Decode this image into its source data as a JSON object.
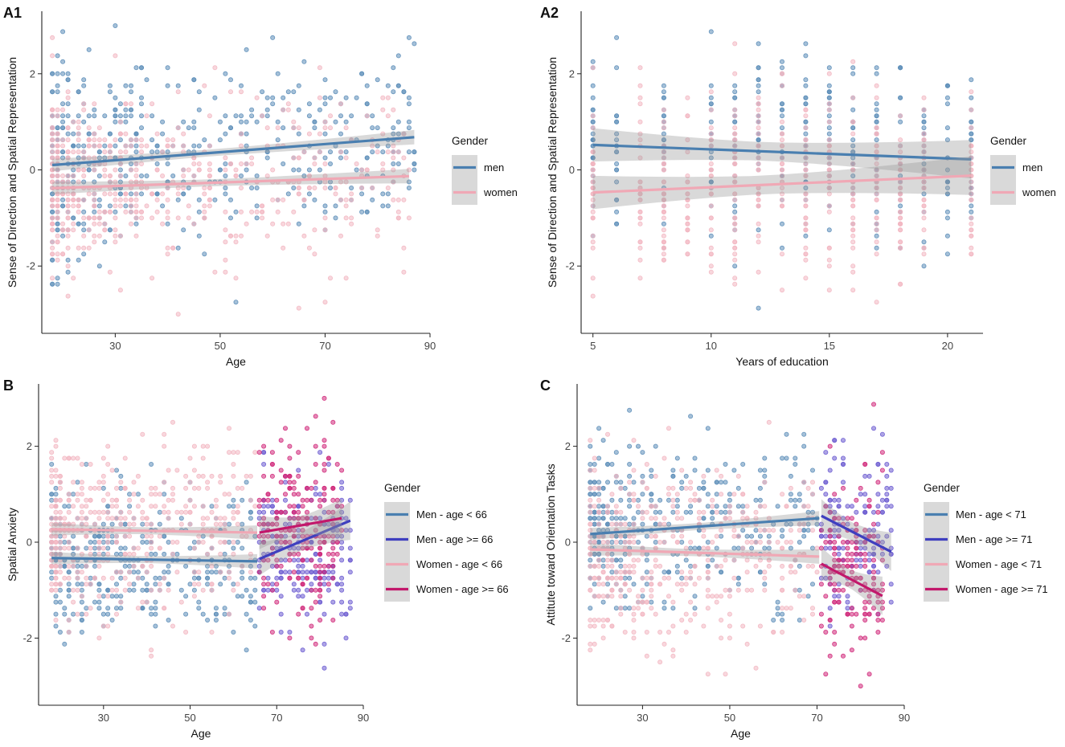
{
  "chart_data": [
    {
      "panel": "A1",
      "type": "scatter",
      "xlabel": "Age",
      "ylabel": "Sense of Direction and Spatial Representation",
      "xlim": [
        16,
        90
      ],
      "ylim": [
        -3.4,
        3.3
      ],
      "xticks": [
        30,
        50,
        70,
        90
      ],
      "yticks": [
        -2,
        0,
        2
      ],
      "legend_title": "Gender",
      "series": [
        {
          "name": "men",
          "color": "#4a7fb0",
          "point_color": "#5b8db8",
          "fit": {
            "x": [
              18,
              87
            ],
            "y": [
              0.1,
              0.68
            ]
          },
          "points": {
            "center": [
              20,
              90,
              0.35
            ],
            "xmin": 18,
            "xmax": 87,
            "n": 520,
            "sd": 0.95,
            "xgrid": 1,
            "ygrid": 0.125,
            "density": "young-old"
          }
        },
        {
          "name": "women",
          "color": "#f0a8b5",
          "point_color": "#f2b6c1",
          "fit": {
            "x": [
              18,
              86
            ],
            "y": [
              -0.38,
              -0.13
            ]
          },
          "points": {
            "center": [
              20,
              90,
              -0.25
            ],
            "xmin": 18,
            "xmax": 86,
            "n": 560,
            "sd": 0.95,
            "xgrid": 1,
            "ygrid": 0.125,
            "density": "young-old"
          }
        }
      ]
    },
    {
      "panel": "A2",
      "type": "scatter",
      "xlabel": "Years of education",
      "ylabel": "Sense of Direction and Spatial Representation",
      "xlim": [
        4.5,
        21.5
      ],
      "ylim": [
        -3.4,
        3.3
      ],
      "xticks": [
        5,
        10,
        15,
        20
      ],
      "yticks": [
        -2,
        0,
        2
      ],
      "legend_title": "Gender",
      "series": [
        {
          "name": "men",
          "color": "#4a7fb0",
          "point_color": "#5b8db8",
          "fit": {
            "x": [
              5,
              21
            ],
            "y": [
              0.52,
              0.22
            ]
          },
          "points": {
            "xvalues": [
              5,
              6,
              8,
              10,
              11,
              12,
              13,
              14,
              15,
              16,
              17,
              18,
              19,
              20,
              21
            ],
            "n": 420,
            "sd": 0.95,
            "ygrid": 0.125
          }
        },
        {
          "name": "women",
          "color": "#f0a8b5",
          "point_color": "#f2b6c1",
          "fit": {
            "x": [
              5,
              21
            ],
            "y": [
              -0.47,
              -0.12
            ]
          },
          "points": {
            "xvalues": [
              5,
              7,
              8,
              9,
              10,
              11,
              12,
              13,
              14,
              15,
              16,
              17,
              18,
              19,
              21
            ],
            "n": 460,
            "sd": 0.95,
            "ygrid": 0.125
          }
        }
      ]
    },
    {
      "panel": "B",
      "type": "scatter",
      "xlabel": "Age",
      "ylabel": "Spatial Anxiety",
      "xlim": [
        15,
        90
      ],
      "ylim": [
        -3.4,
        3.3
      ],
      "xticks": [
        30,
        50,
        70,
        90
      ],
      "yticks": [
        -2,
        0,
        2
      ],
      "legend_title": "Gender",
      "series": [
        {
          "name": "Men - age < 66",
          "color": "#4a7fb0",
          "point_color": "#5b8db8",
          "fit": {
            "x": [
              18,
              65.5
            ],
            "y": [
              -0.33,
              -0.4
            ]
          },
          "points": {
            "xmin": 18,
            "xmax": 65,
            "n": 380,
            "mean": -0.35,
            "sd": 0.7,
            "xgrid": 1,
            "ygrid": 0.125,
            "density": "young"
          }
        },
        {
          "name": "Men - age >= 66",
          "color": "#3f3fbf",
          "point_color": "#6a5ad0",
          "fit": {
            "x": [
              66,
              87
            ],
            "y": [
              -0.35,
              0.45
            ]
          },
          "points": {
            "xmin": 66,
            "xmax": 87,
            "n": 210,
            "mean": -0.2,
            "sd": 0.85,
            "xgrid": 1,
            "ygrid": 0.125,
            "density": "flat"
          }
        },
        {
          "name": "Women - age < 66",
          "color": "#f0a8b5",
          "point_color": "#f2b6c1",
          "fit": {
            "x": [
              18,
              65.5
            ],
            "y": [
              0.27,
              0.2
            ]
          },
          "points": {
            "xmin": 18,
            "xmax": 65,
            "n": 440,
            "mean": 0.2,
            "sd": 0.9,
            "xgrid": 1,
            "ygrid": 0.125,
            "density": "young"
          }
        },
        {
          "name": "Women - age >= 66",
          "color": "#c2186b",
          "point_color": "#d0287a",
          "fit": {
            "x": [
              66,
              85
            ],
            "y": [
              0.2,
              0.5
            ]
          },
          "points": {
            "xmin": 66,
            "xmax": 85,
            "n": 230,
            "mean": 0.35,
            "sd": 0.9,
            "xgrid": 1,
            "ygrid": 0.125,
            "density": "flat"
          }
        }
      ]
    },
    {
      "panel": "C",
      "type": "scatter",
      "xlabel": "Age",
      "ylabel": "Attitute toward Orientation Tasks",
      "xlim": [
        15,
        90
      ],
      "ylim": [
        -3.4,
        3.3
      ],
      "xticks": [
        30,
        50,
        70,
        90
      ],
      "yticks": [
        -2,
        0,
        2
      ],
      "legend_title": "Gender",
      "series": [
        {
          "name": "Men - age < 71",
          "color": "#4a7fb0",
          "point_color": "#5b8db8",
          "fit": {
            "x": [
              18,
              70.5
            ],
            "y": [
              0.17,
              0.5
            ]
          },
          "points": {
            "xmin": 18,
            "xmax": 70,
            "n": 400,
            "mean": 0.35,
            "sd": 0.85,
            "xgrid": 1,
            "ygrid": 0.125,
            "density": "young"
          }
        },
        {
          "name": "Men - age >= 71",
          "color": "#3f3fbf",
          "point_color": "#6a5ad0",
          "fit": {
            "x": [
              71,
              87
            ],
            "y": [
              0.55,
              -0.2
            ]
          },
          "points": {
            "xmin": 71,
            "xmax": 87,
            "n": 150,
            "mean": 0.3,
            "sd": 0.9,
            "xgrid": 1,
            "ygrid": 0.125,
            "density": "flat"
          }
        },
        {
          "name": "Women - age < 71",
          "color": "#f0a8b5",
          "point_color": "#f2b6c1",
          "fit": {
            "x": [
              18,
              70.5
            ],
            "y": [
              -0.15,
              -0.3
            ]
          },
          "points": {
            "xmin": 18,
            "xmax": 70,
            "n": 440,
            "mean": -0.25,
            "sd": 0.95,
            "xgrid": 1,
            "ygrid": 0.125,
            "density": "young"
          }
        },
        {
          "name": "Women - age >= 71",
          "color": "#c2186b",
          "point_color": "#d0287a",
          "fit": {
            "x": [
              71,
              85
            ],
            "y": [
              -0.45,
              -1.12
            ]
          },
          "points": {
            "xmin": 71,
            "xmax": 85,
            "n": 160,
            "mean": -0.6,
            "sd": 0.9,
            "xgrid": 1,
            "ygrid": 0.125,
            "density": "flat"
          }
        }
      ]
    }
  ]
}
